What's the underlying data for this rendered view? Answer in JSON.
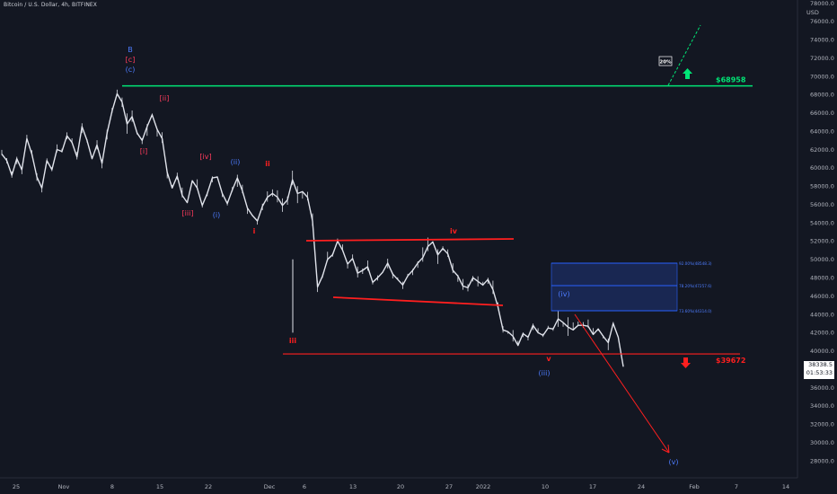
{
  "header": {
    "title": "Bitcoin / U.S. Dollar, 4h, BITFINEX"
  },
  "y_axis": {
    "currency": "USD",
    "ticks": [
      "78000.0",
      "76000.0",
      "74000.0",
      "72000.0",
      "70000.0",
      "68000.0",
      "66000.0",
      "64000.0",
      "62000.0",
      "60000.0",
      "58000.0",
      "56000.0",
      "54000.0",
      "52000.0",
      "50000.0",
      "48000.0",
      "46000.0",
      "44000.0",
      "42000.0",
      "40000.0",
      "38000.0",
      "36000.0",
      "34000.0",
      "32000.0",
      "30000.0",
      "28000.0"
    ]
  },
  "x_axis": {
    "ticks": [
      "25",
      "Nov",
      "8",
      "15",
      "22",
      "Dec",
      "6",
      "13",
      "20",
      "27",
      "2022",
      "10",
      "17",
      "24",
      "Feb",
      "7",
      "14"
    ]
  },
  "current_price": {
    "price": "38338.5",
    "countdown": "01:53:33"
  },
  "chart_data": {
    "type": "line",
    "title": "Bitcoin / U.S. Dollar, 4h, BITFINEX",
    "xlabel": "",
    "ylabel": "USD",
    "ylim": [
      27000,
      78000
    ],
    "series": [
      {
        "values": [
          61500,
          60800,
          59200,
          61000,
          59800,
          63200,
          61500,
          59000,
          57800,
          60800,
          59800,
          62000,
          61800,
          63500,
          62800,
          61200,
          64500,
          63000,
          61000,
          62500,
          60500,
          63800,
          66200,
          68100,
          67200,
          64800,
          65600,
          63800,
          63000,
          64500,
          65800,
          64200,
          63200,
          59500,
          57800,
          59100,
          57000,
          56200,
          58600,
          57800,
          55900,
          57200,
          58900,
          59000,
          57200,
          56100,
          57600,
          58900,
          57500,
          55600,
          54800,
          54200,
          55800,
          56800,
          57200,
          56800,
          55900,
          56500,
          58700,
          57200,
          57400,
          56800,
          54200,
          47000,
          48200,
          50000,
          50500,
          52000,
          51000,
          49500,
          50100,
          48500,
          48800,
          49200,
          47500,
          48000,
          48600,
          49600,
          48400,
          47800,
          47200,
          48200,
          48800,
          49600,
          50200,
          51400,
          51900,
          50500,
          51200,
          50600,
          48800,
          48200,
          47100,
          46900,
          48000,
          47600,
          47200,
          47800,
          46700,
          44800,
          42300,
          42100,
          41600,
          40600,
          41900,
          41500,
          42800,
          42000,
          41700,
          42500,
          42400,
          43500,
          43100,
          42600,
          42300,
          42800,
          42800,
          42700,
          41800,
          42400,
          41600,
          40900,
          43000,
          41500,
          38300
        ]
      }
    ],
    "annotations": {
      "labels": [
        "B",
        "[c]",
        "(c)",
        "[ii]",
        "[i]",
        "[iv]",
        "[iii]",
        "(ii)",
        "(i)",
        "ii",
        "i",
        "iii",
        "iv",
        "v",
        "(iii)",
        "(iv)",
        "(v)"
      ],
      "levels": [
        {
          "price": 68958,
          "label": "$68958",
          "color": "#00e676"
        },
        {
          "price": 39672,
          "label": "$39672",
          "color": "#ff1f1f"
        }
      ],
      "badge": "20%",
      "fib_boxes": [
        {
          "price": 48548.3,
          "label": "92.00%(48548.3)"
        },
        {
          "price": 47257.6,
          "label": "78.20%(47257.6)"
        },
        {
          "price": 44314.0,
          "label": "73.60%(44314.0)"
        }
      ]
    }
  }
}
